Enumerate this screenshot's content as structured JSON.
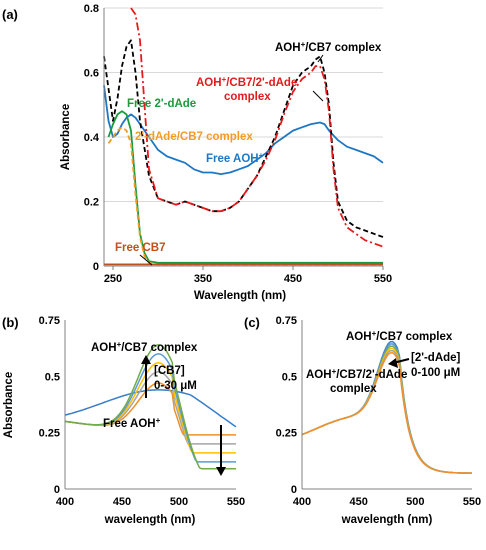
{
  "chart_data": [
    {
      "panel": "(a)",
      "type": "line",
      "xlabel": "Wavelength (nm)",
      "ylabel": "Absorbance",
      "xlim": [
        240,
        550
      ],
      "ylim": [
        0,
        0.8
      ],
      "xticks": [
        "250",
        "350",
        "450",
        "550"
      ],
      "yticks": [
        "0",
        "0.2",
        "0.4",
        "0.6",
        "0.8"
      ],
      "grid": "horizontal",
      "series": [
        {
          "name": "Free AOH+",
          "color": "#1f77c4",
          "dash": "solid",
          "x": [
            240,
            245,
            250,
            255,
            260,
            265,
            270,
            275,
            280,
            290,
            300,
            310,
            320,
            330,
            340,
            350,
            360,
            370,
            380,
            390,
            400,
            410,
            420,
            430,
            440,
            450,
            460,
            470,
            480,
            485,
            490,
            500,
            510,
            520,
            530,
            540,
            550
          ],
          "y": [
            0.56,
            0.45,
            0.4,
            0.41,
            0.44,
            0.46,
            0.47,
            0.46,
            0.44,
            0.4,
            0.36,
            0.34,
            0.33,
            0.32,
            0.3,
            0.29,
            0.29,
            0.285,
            0.29,
            0.3,
            0.31,
            0.33,
            0.35,
            0.38,
            0.4,
            0.42,
            0.43,
            0.44,
            0.445,
            0.44,
            0.42,
            0.39,
            0.37,
            0.36,
            0.35,
            0.34,
            0.32
          ]
        },
        {
          "name": "AOH+/CB7 complex",
          "color": "#000000",
          "dash": "dashed",
          "x": [
            240,
            245,
            250,
            255,
            260,
            265,
            270,
            275,
            280,
            290,
            300,
            310,
            320,
            330,
            340,
            350,
            360,
            370,
            380,
            390,
            400,
            410,
            420,
            430,
            440,
            450,
            460,
            470,
            475,
            480,
            485,
            490,
            495,
            500,
            510,
            520,
            530,
            540,
            550
          ],
          "y": [
            0.65,
            0.55,
            0.45,
            0.52,
            0.62,
            0.68,
            0.7,
            0.6,
            0.45,
            0.28,
            0.21,
            0.2,
            0.19,
            0.2,
            0.19,
            0.18,
            0.17,
            0.17,
            0.18,
            0.2,
            0.24,
            0.28,
            0.34,
            0.4,
            0.48,
            0.56,
            0.6,
            0.62,
            0.64,
            0.65,
            0.6,
            0.5,
            0.32,
            0.2,
            0.14,
            0.12,
            0.11,
            0.1,
            0.09
          ]
        },
        {
          "name": "AOH+/CB7/2'-dAde complex",
          "color": "#e41a1c",
          "dash": "dashdot",
          "x": [
            270,
            275,
            280,
            285,
            290,
            300,
            310,
            320,
            330,
            340,
            350,
            360,
            370,
            380,
            390,
            400,
            410,
            420,
            430,
            440,
            450,
            460,
            470,
            475,
            480,
            485,
            490,
            495,
            500,
            510,
            520,
            530,
            540,
            550
          ],
          "y": [
            0.8,
            0.78,
            0.7,
            0.5,
            0.3,
            0.21,
            0.2,
            0.19,
            0.2,
            0.19,
            0.18,
            0.17,
            0.17,
            0.18,
            0.2,
            0.24,
            0.28,
            0.33,
            0.39,
            0.47,
            0.54,
            0.58,
            0.6,
            0.62,
            0.62,
            0.58,
            0.48,
            0.3,
            0.18,
            0.12,
            0.1,
            0.08,
            0.07,
            0.06
          ]
        },
        {
          "name": "Free 2'-dAde",
          "color": "#1a9b3c",
          "dash": "solid",
          "x": [
            245,
            250,
            255,
            260,
            265,
            270,
            275,
            280,
            285,
            290,
            300,
            320,
            350,
            400,
            450,
            500,
            550
          ],
          "y": [
            0.4,
            0.44,
            0.47,
            0.48,
            0.47,
            0.42,
            0.25,
            0.1,
            0.04,
            0.015,
            0.01,
            0.01,
            0.01,
            0.01,
            0.01,
            0.01,
            0.01
          ]
        },
        {
          "name": "2'-dAde/CB7 complex",
          "color": "#f39c24",
          "dash": "dashed",
          "x": [
            245,
            250,
            255,
            260,
            265,
            270,
            275,
            280,
            285,
            290,
            300,
            320,
            350,
            400,
            450,
            500,
            550
          ],
          "y": [
            0.38,
            0.4,
            0.42,
            0.43,
            0.42,
            0.38,
            0.22,
            0.09,
            0.03,
            0.01,
            0.005,
            0.005,
            0.005,
            0.005,
            0.005,
            0.005,
            0.005
          ]
        },
        {
          "name": "Free CB7",
          "color": "#c0501e",
          "dash": "solid",
          "x": [
            240,
            300,
            400,
            500,
            550
          ],
          "y": [
            0.005,
            0.005,
            0.005,
            0.005,
            0.005
          ]
        }
      ],
      "annotations": [
        "AOH+/CB7 complex",
        "AOH+/CB7/2'-dAde complex",
        "Free 2'-dAde",
        "2'-dAde/CB7 complex",
        "Free AOH+",
        "Free CB7"
      ]
    },
    {
      "panel": "(b)",
      "type": "line",
      "xlabel": "wavelength (nm)",
      "ylabel": "Absorbance",
      "xlim": [
        400,
        550
      ],
      "ylim": [
        0,
        0.75
      ],
      "xticks": [
        "400",
        "450",
        "500",
        "550"
      ],
      "yticks": [
        "0",
        "0.25",
        "0.5",
        "0.75"
      ],
      "series_colors": [
        "#3a7dc9",
        "#f28e2b",
        "#a5a5a5",
        "#ffc000",
        "#5b9bd5",
        "#70ad47"
      ],
      "curves": [
        {
          "peak": 0.44,
          "tail": 0.32
        },
        {
          "peak": 0.47,
          "tail": 0.24
        },
        {
          "peak": 0.52,
          "tail": 0.2
        },
        {
          "peak": 0.56,
          "tail": 0.16
        },
        {
          "peak": 0.6,
          "tail": 0.12
        },
        {
          "peak": 0.64,
          "tail": 0.09
        }
      ],
      "annotations": [
        "AOH+/CB7 complex",
        "[CB7]",
        "0-30 μM",
        "Free AOH+"
      ]
    },
    {
      "panel": "(c)",
      "type": "line",
      "xlabel": "wavelength (nm)",
      "ylabel": "",
      "xlim": [
        400,
        550
      ],
      "ylim": [
        0,
        0.75
      ],
      "xticks": [
        "400",
        "450",
        "500",
        "550"
      ],
      "yticks": [
        "0",
        "0.25",
        "0.5",
        "0.75"
      ],
      "series_colors": [
        "#3a7dc9",
        "#5b9bd5",
        "#70ad47",
        "#ffc000",
        "#a5a5a5",
        "#f28e2b"
      ],
      "curves": [
        {
          "peak": 0.65
        },
        {
          "peak": 0.64
        },
        {
          "peak": 0.63
        },
        {
          "peak": 0.62
        },
        {
          "peak": 0.61
        },
        {
          "peak": 0.6
        }
      ],
      "annotations": [
        "AOH+/CB7 complex",
        "[2'-dAde]",
        "0-100 μM",
        "AOH+/CB7/2'-dAde",
        "complex"
      ]
    }
  ]
}
